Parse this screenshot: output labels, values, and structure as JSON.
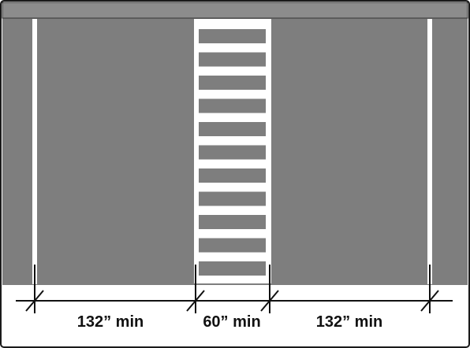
{
  "colors": {
    "pavement": "#7e7e7e",
    "curb_strip": "#8c8c8c",
    "stripe": "#ffffff",
    "line": "#111111",
    "border": "#1a1a1a"
  },
  "dimensions": {
    "left_space": "132” min",
    "aisle": "60” min",
    "right_space": "132” min"
  }
}
